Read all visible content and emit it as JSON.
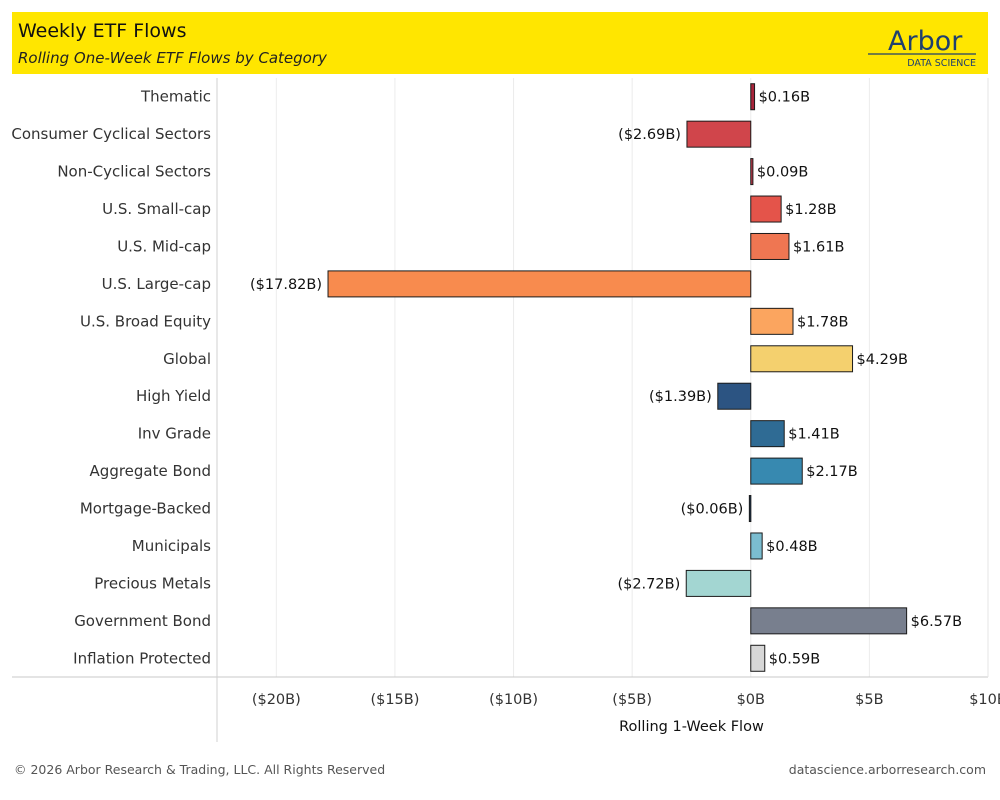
{
  "header": {
    "title": "Weekly ETF Flows",
    "subtitle": "Rolling One-Week ETF Flows by Category",
    "logo_word": "Arbor",
    "logo_sub": "DATA SCIENCE"
  },
  "footer": {
    "copyright": "© 2026 Arbor Research & Trading, LLC. All Rights Reserved",
    "site": "datascience.arborresearch.com"
  },
  "colors": {
    "header_bg": "#ffe600",
    "logo_line": "#1f3f6e"
  },
  "chart_data": {
    "type": "bar",
    "orientation": "horizontal",
    "title": "Weekly ETF Flows",
    "subtitle": "Rolling One-Week ETF Flows by Category",
    "xlabel": "Rolling 1-Week Flow",
    "ylabel": "",
    "xlim": [
      -22.5,
      10
    ],
    "xticks": [
      -20,
      -15,
      -10,
      -5,
      0,
      5,
      10
    ],
    "xtick_labels": [
      "($20B)",
      "($15B)",
      "($10B)",
      "($5B)",
      "$0B",
      "$5B",
      "$10B"
    ],
    "grid": "vertical",
    "categories": [
      "Thematic",
      "Consumer Cyclical Sectors",
      "Non-Cyclical Sectors",
      "U.S. Small-cap",
      "U.S. Mid-cap",
      "U.S. Large-cap",
      "U.S. Broad Equity",
      "Global",
      "High Yield",
      "Inv Grade",
      "Aggregate Bond",
      "Mortgage-Backed",
      "Municipals",
      "Precious Metals",
      "Government Bond",
      "Inflation Protected"
    ],
    "values": [
      0.16,
      -2.69,
      0.09,
      1.28,
      1.61,
      -17.82,
      1.78,
      4.29,
      -1.39,
      1.41,
      2.17,
      -0.06,
      0.48,
      -2.72,
      6.57,
      0.59
    ],
    "value_labels": [
      "$0.16B",
      "($2.69B)",
      "$0.09B",
      "$1.28B",
      "$1.61B",
      "($17.82B)",
      "$1.78B",
      "$4.29B",
      "($1.39B)",
      "$1.41B",
      "$2.17B",
      "($0.06B)",
      "$0.48B",
      "($2.72B)",
      "$6.57B",
      "$0.59B"
    ],
    "bar_colors": [
      "#a8243a",
      "#d0454b",
      "#c4394a",
      "#e4544a",
      "#ef7652",
      "#f88b4e",
      "#fba55f",
      "#f4d06e",
      "#2c5482",
      "#2f6b94",
      "#3789b0",
      "#1d3d5e",
      "#7bbdd0",
      "#a3d6d2",
      "#787f8e",
      "#d7d7d7"
    ]
  }
}
